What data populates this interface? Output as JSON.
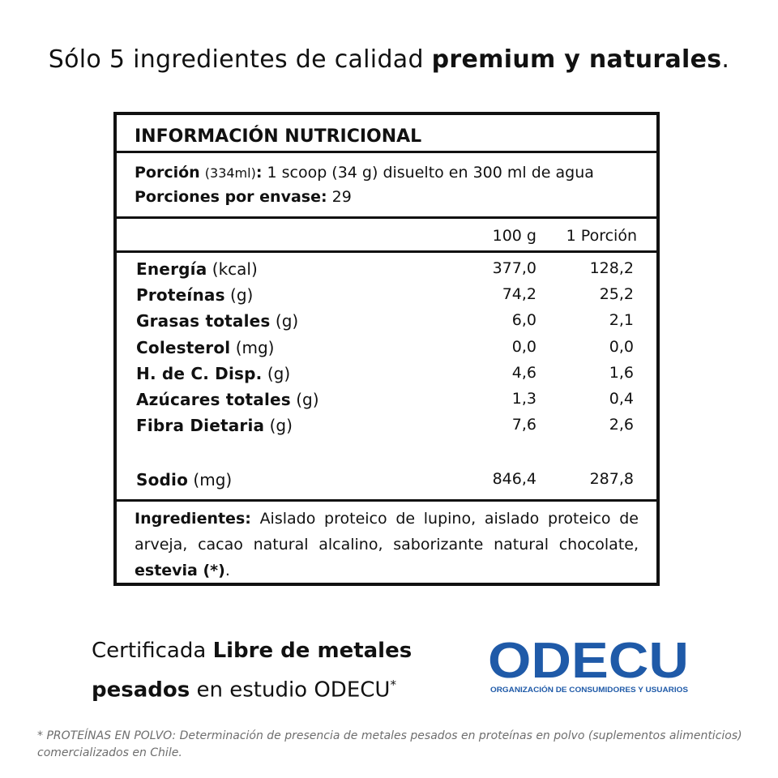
{
  "headline": {
    "normal": "Sólo 5 ingredientes de calidad",
    "bold": "premium y naturales",
    "end": "."
  },
  "label": {
    "title": "INFORMACIÓN NUTRICIONAL",
    "portion_label": "Porción",
    "portion_volume": "(334ml)",
    "portion_sep": ":",
    "portion_desc": "1 scoop (34 g) disuelto en 300 ml de agua",
    "servings_label": "Porciones por envase:",
    "servings_value": "29",
    "col_100g": "100 g",
    "col_portion": "1 Porción",
    "nutrients": [
      {
        "name": "Energía",
        "unit": "(kcal)",
        "per100": "377,0",
        "perPortion": "128,2"
      },
      {
        "name": "Proteínas",
        "unit": "(g)",
        "per100": "74,2",
        "perPortion": "25,2"
      },
      {
        "name": "Grasas totales",
        "unit": "(g)",
        "per100": "6,0",
        "perPortion": "2,1"
      },
      {
        "name": "Colesterol",
        "unit": "(mg)",
        "per100": "0,0",
        "perPortion": "0,0"
      },
      {
        "name": "H. de C. Disp.",
        "unit": "(g)",
        "per100": "4,6",
        "perPortion": "1,6"
      },
      {
        "name": "Azúcares totales",
        "unit": "(g)",
        "per100": "1,3",
        "perPortion": "0,4"
      },
      {
        "name": "Fibra Dietaria",
        "unit": "(g)",
        "per100": "7,6",
        "perPortion": "2,6"
      },
      {
        "name": "Sodio",
        "unit": "(mg)",
        "per100": "846,4",
        "perPortion": "287,8"
      }
    ],
    "ingredients_label": "Ingredientes:",
    "ingredients_text": "Aislado proteico de lupino, aislado proteico de arveja, cacao natural alcalino, saborizante natural chocolate,",
    "ingredients_bold_end": "estevia (*)",
    "ingredients_end": "."
  },
  "certification": {
    "pre": "Certificada",
    "bold1": "Libre de metales",
    "bold2": "pesados",
    "post": "en estudio ODECU",
    "mark": "*"
  },
  "logo": {
    "wordmark": "ODECU",
    "tagline": "ORGANIZACIÓN DE CONSUMIDORES Y USUARIOS",
    "color": "#1f5aa8"
  },
  "footnote": "* PROTEÍNAS EN POLVO: Determinación de presencia de metales pesados en proteínas en polvo (suplementos alimenticios) comercializados en Chile."
}
